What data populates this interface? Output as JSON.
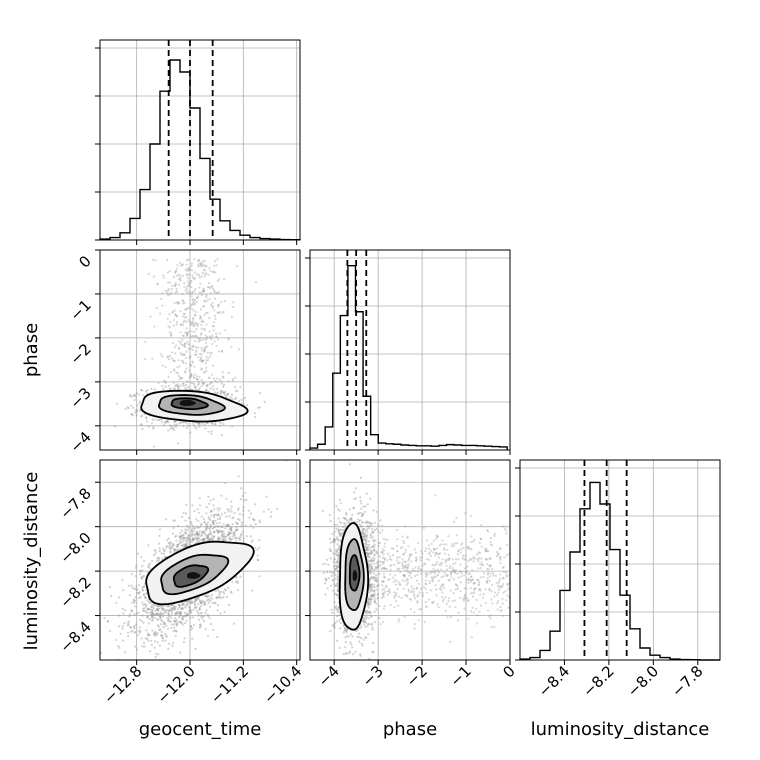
{
  "chart_data": {
    "type": "corner",
    "parameters": [
      "geocent_time",
      "phase",
      "luminosity_distance"
    ],
    "axis_labels": {
      "geocent_time": "geocent_time",
      "phase": "phase",
      "luminosity_distance": "luminosity_distance"
    },
    "ranges": {
      "geocent_time": [
        -13.35,
        -10.35
      ],
      "phase": [
        -4.55,
        0.0
      ],
      "luminosity_distance": [
        -8.6,
        -7.7
      ]
    },
    "ticks": {
      "geocent_time": [
        {
          "v": -12.8,
          "label": "−12.8"
        },
        {
          "v": -12.0,
          "label": "−12.0"
        },
        {
          "v": -11.2,
          "label": "−11.2"
        },
        {
          "v": -10.4,
          "label": "−10.4"
        }
      ],
      "phase": [
        {
          "v": -4,
          "label": "−4"
        },
        {
          "v": -3,
          "label": "−3"
        },
        {
          "v": -2,
          "label": "−2"
        },
        {
          "v": -1,
          "label": "−1"
        },
        {
          "v": 0,
          "label": "0"
        }
      ],
      "luminosity_distance": [
        {
          "v": -8.4,
          "label": "−8.4"
        },
        {
          "v": -8.2,
          "label": "−8.2"
        },
        {
          "v": -8.0,
          "label": "−8.0"
        },
        {
          "v": -7.8,
          "label": "−7.8"
        }
      ]
    },
    "grid": true,
    "quantiles": {
      "geocent_time": [
        -12.32,
        -12.0,
        -11.66
      ],
      "phase": [
        -3.7,
        -3.5,
        -3.27
      ],
      "luminosity_distance": [
        -8.31,
        -8.21,
        -8.12
      ]
    },
    "histograms": {
      "geocent_time": {
        "edges": [
          -13.35,
          -13.2,
          -13.05,
          -12.9,
          -12.75,
          -12.6,
          -12.45,
          -12.3,
          -12.15,
          -12.0,
          -11.85,
          -11.7,
          -11.55,
          -11.4,
          -11.25,
          -11.1,
          -10.95,
          -10.8,
          -10.65,
          -10.5,
          -10.35
        ],
        "counts": [
          0.2,
          0.5,
          1.5,
          4.5,
          10.5,
          20.0,
          31.0,
          37.5,
          35.0,
          27.5,
          17.0,
          8.5,
          4.0,
          2.0,
          1.0,
          0.5,
          0.3,
          0.2,
          0.1,
          0.05
        ],
        "ymax": 40
      },
      "phase": {
        "edges": [
          -4.55,
          -4.3775,
          -4.205,
          -4.0325,
          -3.86,
          -3.6875,
          -3.515,
          -3.3425,
          -3.17,
          -2.9975,
          -2.825,
          -2.6525,
          -2.48,
          -2.3075,
          -2.135,
          -1.9625,
          -1.79,
          -1.6175,
          -1.445,
          -1.2725,
          -1.1,
          -0.9275,
          -0.755,
          -0.5825,
          -0.41,
          -0.2375,
          -0.065
        ],
        "counts": [
          0.5,
          1.5,
          6.0,
          20.0,
          35.0,
          48.0,
          36.0,
          14.0,
          4.0,
          1.8,
          1.6,
          1.5,
          1.3,
          1.2,
          1.1,
          1.1,
          1.0,
          1.2,
          1.4,
          1.3,
          1.2,
          1.2,
          1.1,
          1.0,
          0.9,
          0.8
        ],
        "ymax": 50
      },
      "luminosity_distance": {
        "edges": [
          -8.6,
          -8.555,
          -8.51,
          -8.465,
          -8.42,
          -8.375,
          -8.33,
          -8.285,
          -8.24,
          -8.195,
          -8.15,
          -8.105,
          -8.06,
          -8.015,
          -7.97,
          -7.925,
          -7.88,
          -7.835,
          -7.79,
          -7.745,
          -7.7
        ],
        "counts": [
          0.2,
          0.5,
          2.0,
          6.0,
          14.5,
          22.5,
          31.5,
          37.0,
          32.5,
          23.0,
          13.5,
          6.5,
          2.5,
          1.0,
          0.5,
          0.2,
          0.1,
          0.05,
          0.0,
          0.0
        ],
        "ymax": 40
      }
    },
    "pairs": [
      {
        "x": "geocent_time",
        "y": "phase",
        "scatter": {
          "cx": -12.0,
          "cy": -3.55,
          "sx": 0.35,
          "sy": 0.22,
          "rho": 0.0,
          "n": 1300
        },
        "tail": {
          "cx": -11.95,
          "sx": 0.25,
          "y_from": -3.1,
          "y_to": -0.2,
          "n": 520
        },
        "contours": [
          {
            "cx": -11.98,
            "cy": -3.56,
            "rx": 0.79,
            "ry": 0.34,
            "angle": -4
          },
          {
            "cx": -12.0,
            "cy": -3.53,
            "rx": 0.49,
            "ry": 0.22,
            "angle": -4
          },
          {
            "cx": -12.02,
            "cy": -3.5,
            "rx": 0.27,
            "ry": 0.12,
            "angle": -4
          }
        ],
        "fills": [
          {
            "cx": -11.98,
            "cy": -3.56,
            "rx": 0.79,
            "ry": 0.34,
            "angle": -4,
            "color": "#f2f2f2"
          },
          {
            "cx": -12.0,
            "cy": -3.53,
            "rx": 0.49,
            "ry": 0.22,
            "angle": -4,
            "color": "#b4b4b4"
          },
          {
            "cx": -12.02,
            "cy": -3.5,
            "rx": 0.27,
            "ry": 0.12,
            "angle": -4,
            "color": "#5a5a5a"
          },
          {
            "cx": -12.04,
            "cy": -3.48,
            "rx": 0.12,
            "ry": 0.07,
            "angle": 0,
            "color": "#111111"
          }
        ]
      },
      {
        "x": "geocent_time",
        "y": "luminosity_distance",
        "scatter": {
          "cx": -12.0,
          "cy": -8.21,
          "sx": 0.4,
          "sy": 0.13,
          "rho": 0.6,
          "n": 2600
        },
        "contours": [
          {
            "cx": -11.9,
            "cy": -8.2,
            "rx": 0.85,
            "ry": 0.11,
            "angle": 22
          },
          {
            "cx": -11.96,
            "cy": -8.21,
            "rx": 0.53,
            "ry": 0.07,
            "angle": 22
          },
          {
            "cx": -12.0,
            "cy": -8.22,
            "rx": 0.27,
            "ry": 0.04,
            "angle": 22
          }
        ],
        "fills": [
          {
            "cx": -11.9,
            "cy": -8.2,
            "rx": 0.85,
            "ry": 0.11,
            "angle": 22,
            "color": "#f2f2f2"
          },
          {
            "cx": -11.96,
            "cy": -8.21,
            "rx": 0.53,
            "ry": 0.07,
            "angle": 22,
            "color": "#b4b4b4"
          },
          {
            "cx": -12.0,
            "cy": -8.22,
            "rx": 0.27,
            "ry": 0.04,
            "angle": 22,
            "color": "#5a5a5a"
          },
          {
            "cx": -11.95,
            "cy": -8.22,
            "rx": 0.1,
            "ry": 0.015,
            "angle": 0,
            "color": "#111111"
          }
        ]
      },
      {
        "x": "phase",
        "y": "luminosity_distance",
        "scatter": {
          "cx": -3.55,
          "cy": -8.21,
          "sx": 0.22,
          "sy": 0.13,
          "rho": 0.0,
          "n": 2000
        },
        "tail": {
          "cy": -8.21,
          "sy": 0.1,
          "x_from": -3.2,
          "x_to": 0.0,
          "n": 700
        },
        "contours": [
          {
            "cx": -3.57,
            "cy": -8.23,
            "rx": 0.32,
            "ry": 0.24,
            "angle": 0
          },
          {
            "cx": -3.55,
            "cy": -8.22,
            "rx": 0.21,
            "ry": 0.16,
            "angle": 0
          },
          {
            "cx": -3.54,
            "cy": -8.21,
            "rx": 0.11,
            "ry": 0.08,
            "angle": 0
          }
        ],
        "fills": [
          {
            "cx": -3.57,
            "cy": -8.23,
            "rx": 0.32,
            "ry": 0.24,
            "angle": 0,
            "color": "#f2f2f2"
          },
          {
            "cx": -3.55,
            "cy": -8.22,
            "rx": 0.21,
            "ry": 0.16,
            "angle": 0,
            "color": "#b4b4b4"
          },
          {
            "cx": -3.54,
            "cy": -8.21,
            "rx": 0.11,
            "ry": 0.08,
            "angle": 0,
            "color": "#5a5a5a"
          },
          {
            "cx": -3.53,
            "cy": -8.22,
            "rx": 0.05,
            "ry": 0.025,
            "angle": 0,
            "color": "#111111"
          }
        ]
      }
    ],
    "colors": {
      "line": "#000000",
      "grid": "#b0b0b0",
      "scatter": "#9a9a9a"
    }
  }
}
